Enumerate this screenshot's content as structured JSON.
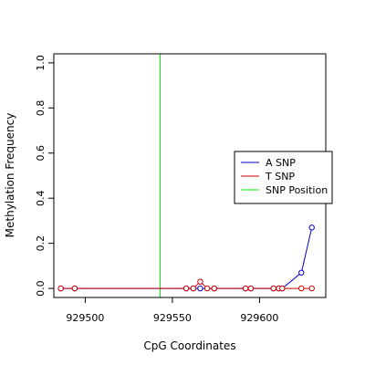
{
  "chart_data": {
    "type": "line",
    "title": "",
    "xlabel": "CpG Coordinates",
    "ylabel": "Methylation Frequency",
    "xlim": [
      929482,
      929638
    ],
    "ylim": [
      -0.04,
      1.04
    ],
    "x_ticks": [
      929500,
      929550,
      929600
    ],
    "y_ticks": [
      0.0,
      0.2,
      0.4,
      0.6,
      0.8,
      1.0
    ],
    "x_tick_labels": [
      "929500",
      "929550",
      "929600"
    ],
    "y_tick_labels": [
      "0.0",
      "0.2",
      "0.4",
      "0.6",
      "0.8",
      "1.0"
    ],
    "grid": false,
    "legend_position": "right",
    "snp_position": 929543,
    "series": [
      {
        "name": "A SNP",
        "color": "#0000cc",
        "x": [
          929486,
          929494,
          929558,
          929562,
          929566,
          929574,
          929592,
          929595,
          929608,
          929611,
          929613,
          929624,
          929630
        ],
        "y": [
          0.0,
          0.0,
          0.0,
          0.0,
          0.0,
          0.0,
          0.0,
          0.0,
          0.0,
          0.0,
          0.0,
          0.07,
          0.27
        ]
      },
      {
        "name": "T SNP",
        "color": "#cc0000",
        "x": [
          929486,
          929494,
          929558,
          929562,
          929566,
          929570,
          929574,
          929592,
          929595,
          929608,
          929611,
          929613,
          929624,
          929630
        ],
        "y": [
          0.0,
          0.0,
          0.0,
          0.0,
          0.03,
          0.0,
          0.0,
          0.0,
          0.0,
          0.0,
          0.0,
          0.0,
          0.0,
          0.0
        ]
      },
      {
        "name": "SNP Position",
        "color": "#00ee00",
        "type": "vline"
      }
    ]
  }
}
